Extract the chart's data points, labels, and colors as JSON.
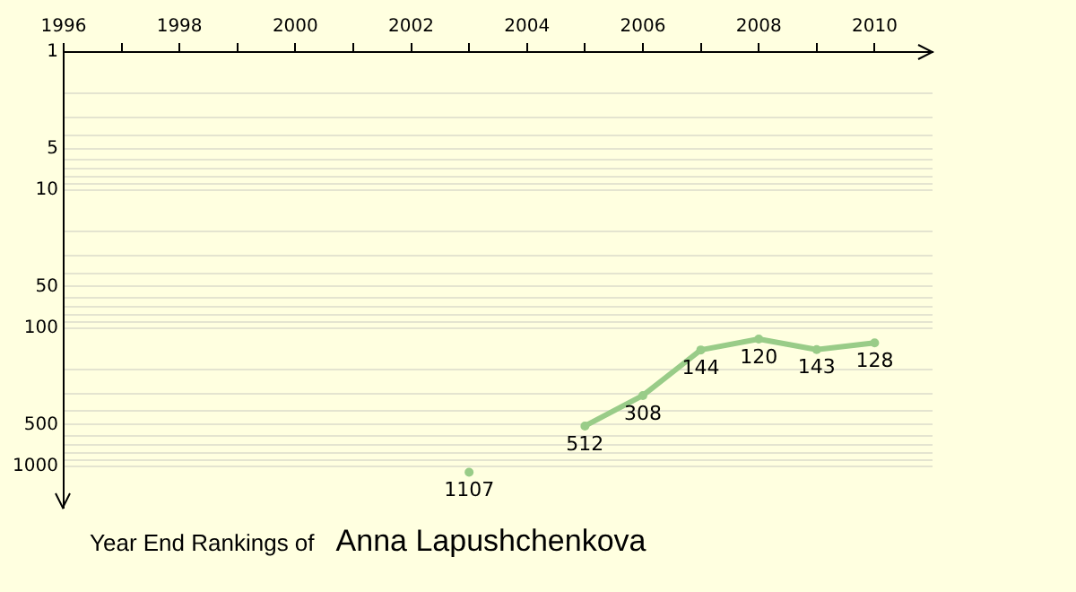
{
  "chart_data": {
    "type": "line",
    "title": "Year End Rankings of",
    "subtitle": "Anna Lapushchenkova",
    "x": [
      2003,
      2004,
      2005,
      2006,
      2007,
      2008,
      2009,
      2010
    ],
    "series": [
      {
        "color": "#99cc88",
        "values": [
          1107,
          null,
          512,
          308,
          144,
          120,
          143,
          128
        ]
      }
    ],
    "xlim": [
      1996,
      2011
    ],
    "xticks": [
      1996,
      {
        "value": 1997,
        "label": null
      },
      1998,
      {
        "value": 1999,
        "label": null
      },
      2000,
      {
        "value": 2001,
        "label": null
      },
      2002,
      {
        "value": 2003,
        "label": null
      },
      2004,
      {
        "value": 2005,
        "label": null
      },
      2006,
      {
        "value": 2007,
        "label": null
      },
      2008,
      {
        "value": 2009,
        "label": null
      },
      2010
    ],
    "ylim": [
      2000,
      1
    ],
    "log": true,
    "yticks": [
      1,
      {
        "value": 2,
        "label": null
      },
      {
        "value": 3,
        "label": null
      },
      {
        "value": 4,
        "label": null
      },
      5,
      {
        "value": 6,
        "label": null
      },
      {
        "value": 7,
        "label": null
      },
      {
        "value": 8,
        "label": null
      },
      {
        "value": 9,
        "label": null
      },
      10,
      {
        "value": 20,
        "label": null
      },
      {
        "value": 30,
        "label": null
      },
      {
        "value": 40,
        "label": null
      },
      50,
      {
        "value": 60,
        "label": null
      },
      {
        "value": 70,
        "label": null
      },
      {
        "value": 80,
        "label": null
      },
      {
        "value": 90,
        "label": null
      },
      100,
      {
        "value": 200,
        "label": null
      },
      {
        "value": 300,
        "label": null
      },
      {
        "value": 400,
        "label": null
      },
      500,
      {
        "value": 600,
        "label": null
      },
      {
        "value": 700,
        "label": null
      },
      {
        "value": 800,
        "label": null
      },
      {
        "value": 900,
        "label": null
      },
      1000
    ],
    "grid": "y",
    "marker": "circle",
    "line_style": "solid",
    "data_labels": true
  }
}
